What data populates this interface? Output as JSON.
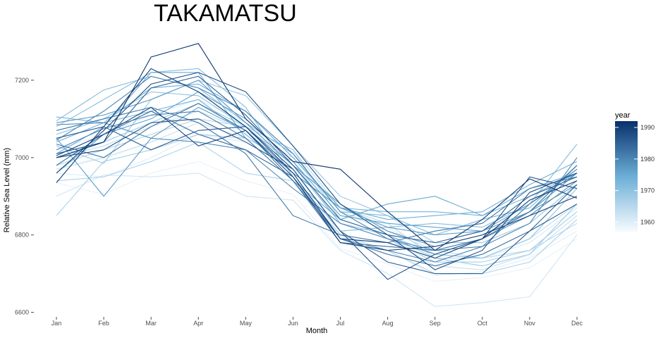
{
  "chart_data": {
    "type": "line",
    "title": "TAKAMATSU",
    "xlabel": "Month",
    "ylabel": "Relative Sea Level (mm)",
    "categories": [
      "Jan",
      "Feb",
      "Mar",
      "Apr",
      "May",
      "Jun",
      "Jul",
      "Aug",
      "Sep",
      "Oct",
      "Nov",
      "Dec"
    ],
    "ylim": [
      6590,
      7320
    ],
    "yticks": [
      6600,
      6800,
      7000,
      7200
    ],
    "grid": false,
    "legend": {
      "title": "year",
      "position": "right",
      "range": [
        1957,
        1992
      ],
      "ticks": [
        1960,
        1970,
        1980,
        1990
      ],
      "color_low": "#f7fbff",
      "color_high": "#08306b"
    },
    "series": [
      {
        "year": 1958,
        "values": [
          6985,
          6995,
          7040,
          7065,
          7040,
          6990,
          6830,
          6800,
          6730,
          6720,
          6745,
          6820
        ]
      },
      {
        "year": 1959,
        "values": [
          6935,
          6905,
          6960,
          6990,
          6940,
          6905,
          6765,
          6725,
          6680,
          6690,
          6715,
          6790
        ]
      },
      {
        "year": 1960,
        "values": [
          6960,
          6950,
          7000,
          7060,
          7040,
          6980,
          6800,
          6760,
          6695,
          6705,
          6740,
          6810
        ]
      },
      {
        "year": 1961,
        "values": [
          7020,
          7060,
          7110,
          7150,
          7090,
          7010,
          6860,
          6820,
          6750,
          6740,
          6780,
          6870
        ]
      },
      {
        "year": 1962,
        "values": [
          6900,
          6955,
          6950,
          6960,
          6900,
          6890,
          6760,
          6700,
          6615,
          6625,
          6640,
          6800
        ]
      },
      {
        "year": 1963,
        "values": [
          6970,
          7000,
          7040,
          7090,
          7050,
          6990,
          6830,
          6790,
          6720,
          6710,
          6750,
          6850
        ]
      },
      {
        "year": 1964,
        "values": [
          7000,
          7030,
          7080,
          7120,
          7070,
          7000,
          6860,
          6810,
          6760,
          6740,
          6790,
          6880
        ]
      },
      {
        "year": 1965,
        "values": [
          6980,
          7020,
          7060,
          7100,
          7080,
          7020,
          6870,
          6830,
          6740,
          6740,
          6760,
          6830
        ]
      },
      {
        "year": 1966,
        "values": [
          6940,
          6950,
          6990,
          7040,
          6960,
          6940,
          6800,
          6760,
          6700,
          6700,
          6730,
          6840
        ]
      },
      {
        "year": 1967,
        "values": [
          6850,
          6990,
          7020,
          7060,
          7050,
          6990,
          6830,
          6790,
          6730,
          6730,
          6760,
          6860
        ]
      },
      {
        "year": 1968,
        "values": [
          7000,
          7040,
          7090,
          7140,
          7080,
          7020,
          6840,
          6800,
          6740,
          6720,
          6750,
          6880
        ]
      },
      {
        "year": 1969,
        "values": [
          7030,
          6985,
          7150,
          7200,
          7160,
          7030,
          6900,
          6850,
          6780,
          6780,
          6830,
          6930
        ]
      },
      {
        "year": 1970,
        "values": [
          7060,
          7100,
          7170,
          7160,
          7080,
          6980,
          6830,
          6800,
          6750,
          6740,
          6790,
          6920
        ]
      },
      {
        "year": 1971,
        "values": [
          7080,
          7150,
          7220,
          7230,
          7130,
          6950,
          6810,
          6820,
          6830,
          6820,
          6880,
          7035
        ]
      },
      {
        "year": 1972,
        "values": [
          7095,
          7175,
          7210,
          7180,
          7090,
          7010,
          6860,
          6850,
          6800,
          6840,
          6870,
          6980
        ]
      },
      {
        "year": 1973,
        "values": [
          7105,
          7090,
          7120,
          7150,
          7060,
          6960,
          6870,
          6860,
          6860,
          6850,
          6900,
          6960
        ]
      },
      {
        "year": 1974,
        "values": [
          7040,
          7090,
          7180,
          7190,
          7120,
          7000,
          6870,
          6840,
          6850,
          6860,
          6930,
          6990
        ]
      },
      {
        "year": 1975,
        "values": [
          7010,
          7080,
          7220,
          7220,
          7050,
          6940,
          6840,
          6880,
          6900,
          6850,
          6920,
          6960
        ]
      },
      {
        "year": 1976,
        "values": [
          6960,
          7060,
          7100,
          7170,
          7100,
          6990,
          6850,
          6830,
          6820,
          6810,
          6880,
          6960
        ]
      },
      {
        "year": 1977,
        "values": [
          7050,
          6900,
          7050,
          7130,
          7070,
          6960,
          6870,
          6820,
          6800,
          6810,
          6860,
          6930
        ]
      },
      {
        "year": 1978,
        "values": [
          7090,
          7110,
          7150,
          7200,
          7090,
          6980,
          6880,
          6810,
          6770,
          6800,
          6860,
          6960
        ]
      },
      {
        "year": 1979,
        "values": [
          7085,
          7090,
          7050,
          7040,
          7020,
          6920,
          6830,
          6790,
          6750,
          6790,
          6850,
          6940
        ]
      },
      {
        "year": 1980,
        "values": [
          7045,
          7120,
          7210,
          7180,
          7120,
          7010,
          6860,
          6790,
          6760,
          6770,
          6830,
          7000
        ]
      },
      {
        "year": 1981,
        "values": [
          7020,
          7075,
          7110,
          7120,
          7050,
          6940,
          6790,
          6760,
          6730,
          6770,
          6880,
          6970
        ]
      },
      {
        "year": 1982,
        "values": [
          7070,
          7100,
          7130,
          7090,
          7010,
          6850,
          6800,
          6780,
          6810,
          6830,
          6920,
          6950
        ]
      },
      {
        "year": 1983,
        "values": [
          7035,
          7000,
          7080,
          7140,
          7070,
          6940,
          6780,
          6770,
          6760,
          6790,
          6860,
          6980
        ]
      },
      {
        "year": 1984,
        "values": [
          6980,
          7060,
          7120,
          7060,
          7020,
          6950,
          6790,
          6750,
          6720,
          6750,
          6810,
          6930
        ]
      },
      {
        "year": 1985,
        "values": [
          7010,
          7040,
          7180,
          7210,
          7110,
          6980,
          6840,
          6800,
          6780,
          6810,
          6900,
          6950
        ]
      },
      {
        "year": 1986,
        "values": [
          7050,
          7080,
          7020,
          7070,
          7080,
          6970,
          6810,
          6730,
          6700,
          6700,
          6810,
          6880
        ]
      },
      {
        "year": 1987,
        "values": [
          7000,
          7020,
          7090,
          7100,
          7040,
          6970,
          6810,
          6685,
          6750,
          6790,
          6950,
          6920
        ]
      },
      {
        "year": 1988,
        "values": [
          6960,
          7070,
          7190,
          7220,
          7170,
          7030,
          6880,
          6800,
          6710,
          6760,
          6910,
          6960
        ]
      },
      {
        "year": 1989,
        "values": [
          7005,
          7060,
          7130,
          7030,
          7070,
          6950,
          6780,
          6760,
          6770,
          6800,
          6850,
          6900
        ]
      },
      {
        "year": 1990,
        "values": [
          6935,
          7080,
          7230,
          7170,
          7080,
          6960,
          6790,
          6780,
          6740,
          6790,
          6890,
          6940
        ]
      },
      {
        "year": 1991,
        "values": [
          7000,
          7040,
          7260,
          7295,
          7100,
          6990,
          6970,
          6860,
          6760,
          6840,
          6945,
          6895
        ]
      }
    ]
  }
}
